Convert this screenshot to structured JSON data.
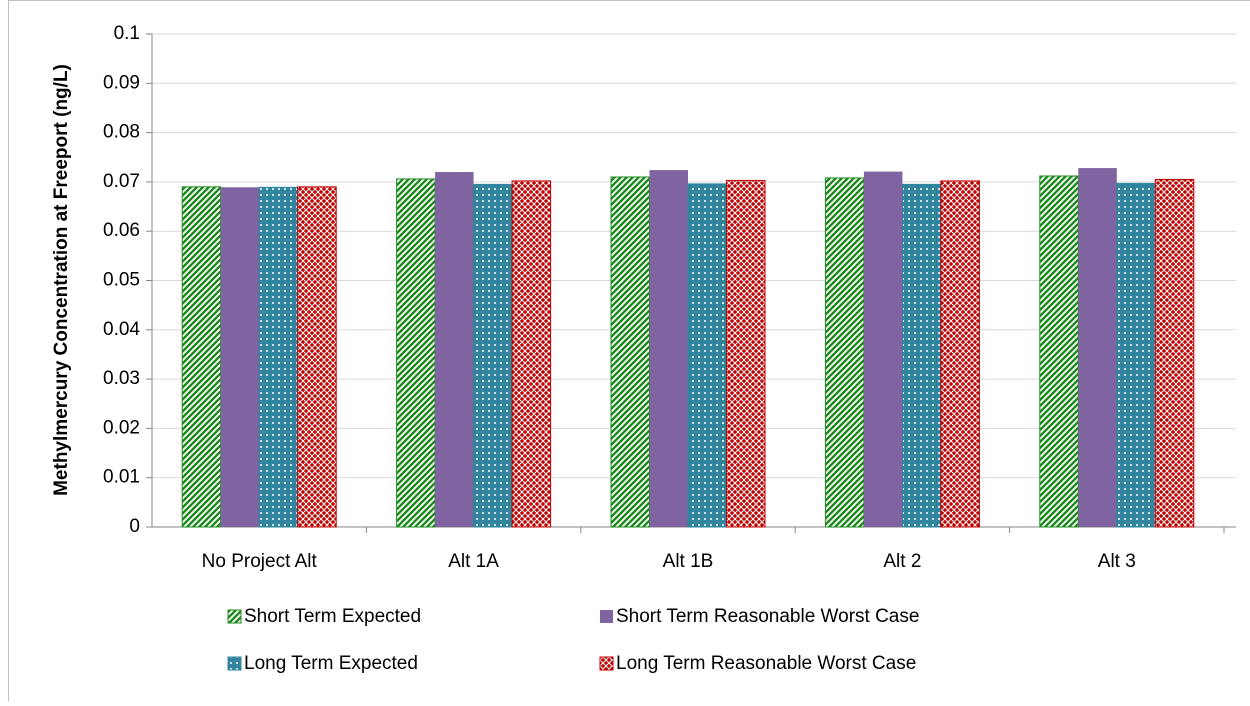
{
  "chart_data": {
    "type": "bar",
    "y_label": "Methylmercury Concentration at Freeport (ng/L)",
    "categories": [
      "No Project Alt",
      "Alt 1A",
      "Alt 1B",
      "Alt 2",
      "Alt 3"
    ],
    "series": [
      {
        "name": "Short Term Expected",
        "color": "#1e8a1e",
        "pattern": "stripes",
        "values": [
          0.069,
          0.0706,
          0.071,
          0.0708,
          0.0712
        ]
      },
      {
        "name": "Short Term Reasonable Worst Case",
        "color": "#8064a2",
        "pattern": "solid",
        "values": [
          0.0689,
          0.072,
          0.0724,
          0.0721,
          0.0728
        ]
      },
      {
        "name": "Long Term Expected",
        "color": "#31859c",
        "pattern": "dots",
        "values": [
          0.0689,
          0.0695,
          0.0696,
          0.0695,
          0.0697
        ]
      },
      {
        "name": "Long Term Reasonable Worst Case",
        "color": "#c00000",
        "pattern": "lattice",
        "values": [
          0.069,
          0.0702,
          0.0703,
          0.0702,
          0.0705
        ]
      }
    ],
    "ylim": [
      0,
      0.1
    ],
    "yticks": [
      0,
      0.01,
      0.02,
      0.03,
      0.04,
      0.05,
      0.06,
      0.07,
      0.08,
      0.09,
      0.1
    ],
    "grid": true
  }
}
